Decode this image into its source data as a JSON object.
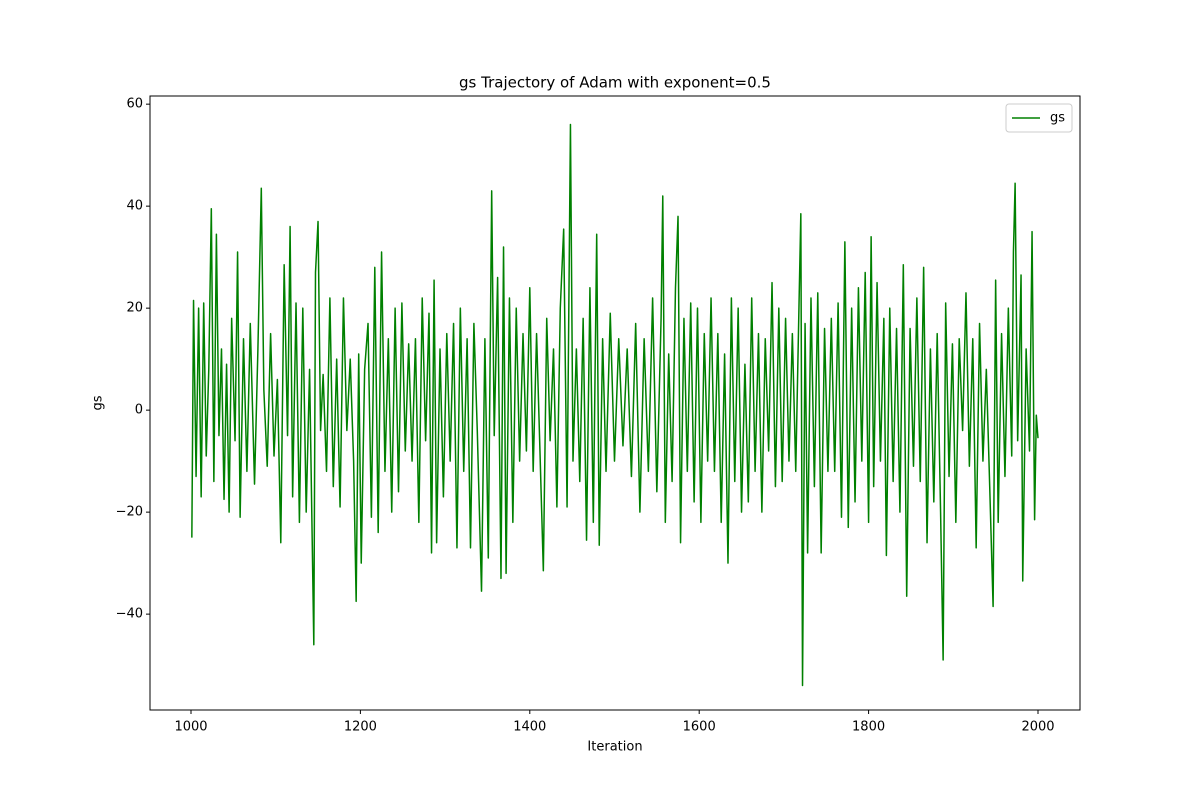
{
  "chart_data": {
    "type": "line",
    "title": "gs Trajectory of Adam with exponent=0.5",
    "x_label": "Iteration",
    "y_label": "gs",
    "x": [
      1001,
      1003,
      1006,
      1009,
      1012,
      1015,
      1018,
      1021,
      1024,
      1027,
      1030,
      1033,
      1036,
      1039,
      1042,
      1045,
      1048,
      1052,
      1055,
      1058,
      1062,
      1066,
      1070,
      1075,
      1079,
      1083,
      1086,
      1090,
      1094,
      1098,
      1102,
      1106,
      1110,
      1114,
      1117,
      1120,
      1124,
      1128,
      1132,
      1136,
      1140,
      1145,
      1147,
      1150,
      1153,
      1156,
      1160,
      1164,
      1168,
      1172,
      1176,
      1180,
      1184,
      1188,
      1192,
      1195,
      1198,
      1201,
      1205,
      1209,
      1213,
      1217,
      1221,
      1225,
      1229,
      1233,
      1237,
      1241,
      1245,
      1249,
      1253,
      1257,
      1261,
      1265,
      1269,
      1273,
      1277,
      1281,
      1284,
      1287,
      1290,
      1294,
      1298,
      1302,
      1306,
      1310,
      1314,
      1318,
      1322,
      1326,
      1330,
      1334,
      1338,
      1343,
      1347,
      1351,
      1355,
      1358,
      1362,
      1366,
      1369,
      1372,
      1376,
      1380,
      1384,
      1388,
      1392,
      1396,
      1400,
      1404,
      1408,
      1412,
      1416,
      1420,
      1424,
      1428,
      1432,
      1436,
      1440,
      1444,
      1448,
      1451,
      1455,
      1459,
      1463,
      1467,
      1471,
      1475,
      1479,
      1482,
      1486,
      1490,
      1495,
      1500,
      1505,
      1510,
      1515,
      1520,
      1525,
      1530,
      1535,
      1540,
      1545,
      1550,
      1555,
      1557,
      1560,
      1564,
      1568,
      1572,
      1575,
      1578,
      1582,
      1586,
      1590,
      1594,
      1598,
      1602,
      1606,
      1610,
      1614,
      1618,
      1622,
      1626,
      1630,
      1634,
      1638,
      1642,
      1646,
      1650,
      1654,
      1658,
      1662,
      1666,
      1670,
      1674,
      1678,
      1682,
      1686,
      1690,
      1694,
      1698,
      1702,
      1706,
      1710,
      1714,
      1718,
      1720,
      1722,
      1725,
      1728,
      1732,
      1736,
      1740,
      1744,
      1748,
      1752,
      1756,
      1760,
      1764,
      1768,
      1772,
      1776,
      1780,
      1784,
      1788,
      1792,
      1796,
      1800,
      1803,
      1806,
      1810,
      1814,
      1818,
      1821,
      1825,
      1829,
      1833,
      1837,
      1841,
      1845,
      1849,
      1853,
      1857,
      1861,
      1865,
      1869,
      1873,
      1877,
      1881,
      1885,
      1888,
      1891,
      1895,
      1899,
      1903,
      1907,
      1911,
      1915,
      1919,
      1923,
      1927,
      1931,
      1935,
      1939,
      1943,
      1947,
      1950,
      1953,
      1957,
      1961,
      1965,
      1969,
      1971,
      1973,
      1976,
      1980,
      1982,
      1986,
      1990,
      1993,
      1996,
      1998,
      2000
    ],
    "series": [
      {
        "name": "gs",
        "color": "#008000",
        "values": [
          -25,
          21.5,
          -13,
          20,
          -17,
          21,
          -9,
          8,
          39.5,
          -14,
          34.5,
          -5,
          12,
          -17.5,
          9,
          -20,
          18,
          -6,
          31,
          -21,
          14,
          -12,
          17,
          -14.5,
          12,
          43.5,
          4,
          -11,
          15,
          -9,
          6,
          -26,
          28.5,
          -5,
          36,
          -17,
          21,
          -22,
          20,
          -20,
          8,
          -46,
          27,
          37,
          -4,
          7,
          -12,
          22,
          -15,
          10,
          -19,
          22,
          -4,
          10,
          -10,
          -37.5,
          11,
          -30,
          8,
          17,
          -21,
          28,
          -24,
          31,
          -12,
          14,
          -20,
          20,
          -16,
          21,
          -8,
          13,
          -10,
          14,
          -22,
          22,
          -6,
          19,
          -28,
          25.5,
          -26,
          12,
          -17,
          15,
          -10,
          17,
          -27,
          20,
          -12,
          14,
          -27,
          17,
          -4,
          -35.5,
          14,
          -29,
          43,
          -5,
          26,
          -33,
          32,
          -32,
          22,
          -22,
          20,
          -10,
          15,
          -8,
          24,
          -12,
          15,
          -8,
          -31.5,
          18,
          -6,
          12,
          -19,
          20,
          35.5,
          -19,
          56,
          -10,
          12,
          -14,
          18,
          -25.5,
          24,
          -22,
          34.5,
          -26.5,
          14,
          -12,
          19,
          -10,
          14,
          -7,
          12,
          -13,
          17,
          -20,
          14,
          -12,
          22,
          -16,
          18,
          42,
          -22,
          11,
          -14,
          24,
          38,
          -26,
          18,
          -12,
          21,
          -18,
          20,
          -22,
          15,
          -10,
          22,
          -12,
          15,
          -22,
          11,
          -30,
          22,
          -14,
          20,
          -20,
          9,
          -18,
          22,
          -12,
          15,
          -20,
          14,
          -8,
          25,
          -15,
          20,
          -14,
          18,
          -10,
          15,
          -12,
          22,
          38.5,
          -54,
          17,
          -28,
          22,
          -15,
          23,
          -28,
          16,
          -12,
          18,
          -12,
          21,
          -21,
          33,
          -23,
          20,
          -18,
          24,
          -10,
          27,
          -22,
          34,
          -15,
          25,
          -10,
          18,
          -28.5,
          20,
          -14,
          16,
          -20,
          28.5,
          -36.5,
          16,
          -11,
          22,
          -14,
          28,
          -26,
          12,
          -18,
          15,
          -20,
          -49,
          21,
          -13,
          13,
          -22,
          14,
          -4,
          23,
          -11,
          14,
          -27,
          17,
          -10,
          8,
          -15,
          -38.5,
          25.5,
          -22,
          15,
          -13,
          20,
          -9,
          31,
          44.5,
          -6,
          26.5,
          -33.5,
          12,
          -8,
          35,
          -21.5,
          -1,
          -5.5
        ]
      }
    ],
    "xlim": [
      951.6,
      2049.6
    ],
    "ylim": [
      -58.8,
      61.6
    ],
    "xticks": [
      1000,
      1200,
      1400,
      1600,
      1800,
      2000
    ],
    "yticks": [
      {
        "value": -40,
        "label": "−40"
      },
      {
        "value": -20,
        "label": "−20"
      },
      0,
      20,
      40,
      60
    ],
    "legend": "upper right"
  }
}
